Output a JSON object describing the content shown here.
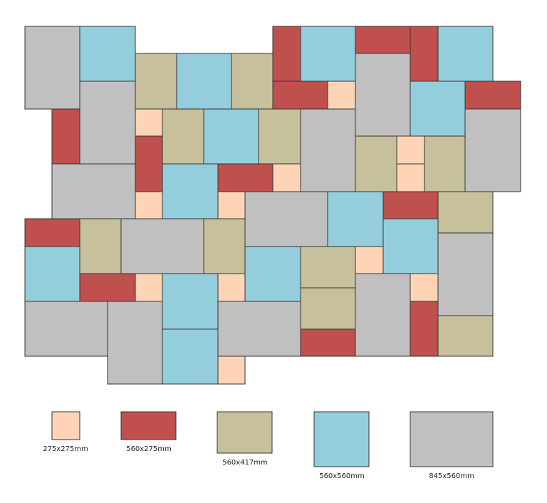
{
  "colors": {
    "t275x275": "#fdd5b6",
    "t560x275": "#c0504e",
    "t560x417": "#c7c09d",
    "t560x560": "#94cedd",
    "t845x560": "#c0c0c0",
    "stroke": "#333333"
  },
  "legend": [
    {
      "type": "t275x275",
      "label": "275x275mm"
    },
    {
      "type": "t560x275",
      "label": "560x275mm"
    },
    {
      "type": "t560x417",
      "label": "560x417mm"
    },
    {
      "type": "t560x560",
      "label": "560x560mm"
    },
    {
      "type": "t845x560",
      "label": "845x560mm"
    }
  ]
}
